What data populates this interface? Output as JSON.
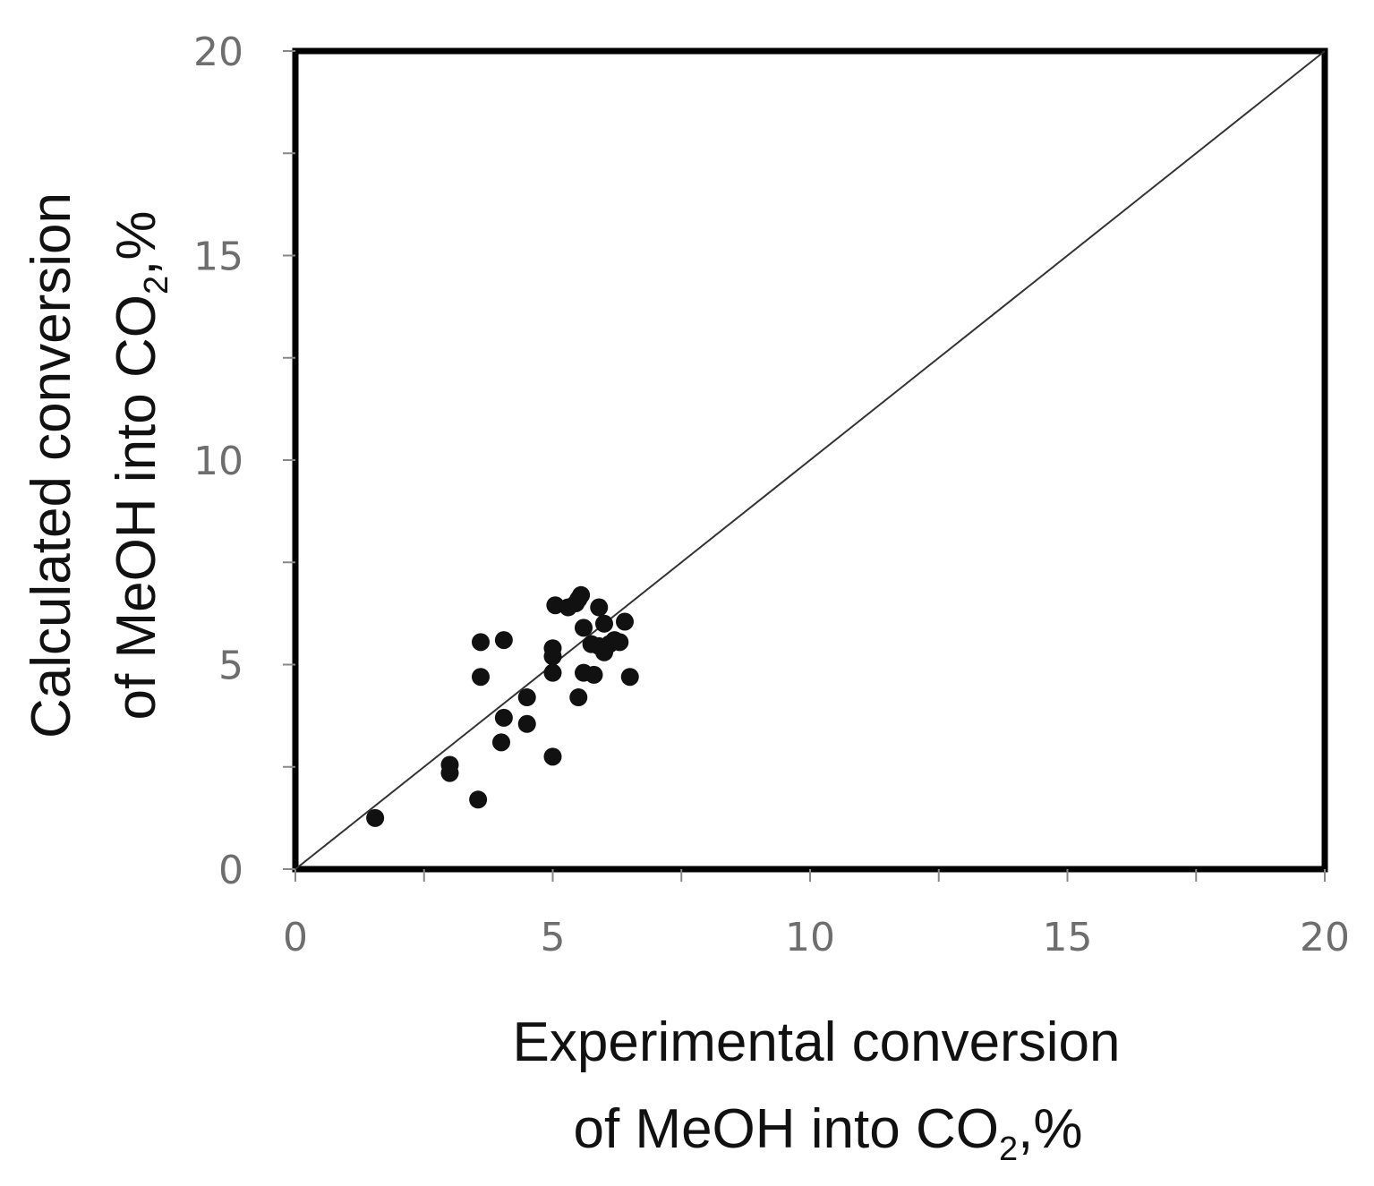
{
  "chart_data": {
    "type": "scatter",
    "xlabel_parts": {
      "line1": "Experimental conversion",
      "line2_prefix": "of MeOH into CO",
      "line2_sub": "2",
      "line2_suffix": ",%"
    },
    "ylabel_parts": {
      "line1": "Calculated conversion",
      "line2_prefix": "of MeOH into CO",
      "line2_sub": "2",
      "line2_suffix": ",%"
    },
    "xlim": [
      0,
      20
    ],
    "ylim": [
      0,
      20
    ],
    "xticks": [
      "0",
      "5",
      "10",
      "15",
      "20"
    ],
    "yticks": [
      "0",
      "5",
      "10",
      "15",
      "20"
    ],
    "grid": false,
    "reference_line": {
      "from": [
        0,
        0
      ],
      "to": [
        20,
        20
      ]
    },
    "marker_color": "#111111",
    "points": [
      {
        "x": 1.55,
        "y": 1.25
      },
      {
        "x": 3.0,
        "y": 2.35
      },
      {
        "x": 3.0,
        "y": 2.55
      },
      {
        "x": 3.55,
        "y": 1.7
      },
      {
        "x": 3.6,
        "y": 4.7
      },
      {
        "x": 3.6,
        "y": 5.55
      },
      {
        "x": 4.0,
        "y": 3.1
      },
      {
        "x": 4.05,
        "y": 3.7
      },
      {
        "x": 4.05,
        "y": 5.6
      },
      {
        "x": 4.5,
        "y": 3.55
      },
      {
        "x": 4.5,
        "y": 4.2
      },
      {
        "x": 5.0,
        "y": 2.75
      },
      {
        "x": 5.0,
        "y": 4.8
      },
      {
        "x": 5.0,
        "y": 5.2
      },
      {
        "x": 5.0,
        "y": 5.4
      },
      {
        "x": 5.05,
        "y": 6.45
      },
      {
        "x": 5.3,
        "y": 6.4
      },
      {
        "x": 5.45,
        "y": 6.5
      },
      {
        "x": 5.5,
        "y": 6.6
      },
      {
        "x": 5.5,
        "y": 4.2
      },
      {
        "x": 5.55,
        "y": 6.7
      },
      {
        "x": 5.6,
        "y": 5.9
      },
      {
        "x": 5.6,
        "y": 4.8
      },
      {
        "x": 5.75,
        "y": 5.5
      },
      {
        "x": 5.8,
        "y": 4.75
      },
      {
        "x": 5.9,
        "y": 5.45
      },
      {
        "x": 5.9,
        "y": 6.4
      },
      {
        "x": 6.0,
        "y": 6.0
      },
      {
        "x": 6.0,
        "y": 5.3
      },
      {
        "x": 6.1,
        "y": 5.5
      },
      {
        "x": 6.2,
        "y": 5.6
      },
      {
        "x": 6.3,
        "y": 5.55
      },
      {
        "x": 6.4,
        "y": 6.05
      },
      {
        "x": 6.5,
        "y": 4.7
      }
    ]
  }
}
